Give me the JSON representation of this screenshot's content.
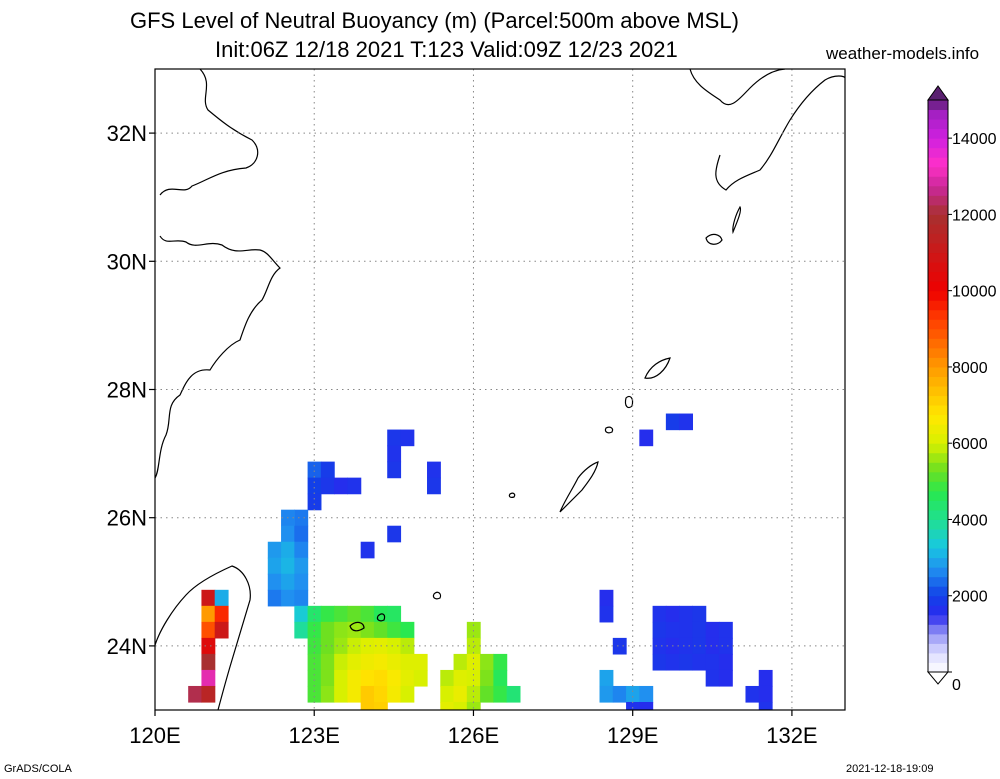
{
  "title_line1": "GFS Level of Neutral Buoyancy (m) (Parcel:500m above MSL)",
  "title_line2": "Init:06Z 12/18 2021 T:123 Valid:09Z 12/23 2021",
  "site": "weather-models.info",
  "footer_left": "GrADS/COLA",
  "footer_right": "2021-12-18-19:09",
  "chart_data": {
    "type": "heatmap",
    "title": "GFS Level of Neutral Buoyancy (m) (Parcel:500m above MSL)",
    "subtitle": "Init:06Z 12/18 2021 T:123 Valid:09Z 12/23 2021",
    "xlabel": "",
    "ylabel": "",
    "xlim": [
      120,
      133
    ],
    "ylim": [
      23,
      33
    ],
    "x_ticks": [
      {
        "value": 120,
        "label": "120E"
      },
      {
        "value": 123,
        "label": "123E"
      },
      {
        "value": 126,
        "label": "126E"
      },
      {
        "value": 129,
        "label": "129E"
      },
      {
        "value": 132,
        "label": "132E"
      }
    ],
    "y_ticks": [
      {
        "value": 24,
        "label": "24N"
      },
      {
        "value": 26,
        "label": "26N"
      },
      {
        "value": 28,
        "label": "28N"
      },
      {
        "value": 30,
        "label": "30N"
      },
      {
        "value": 32,
        "label": "32N"
      }
    ],
    "grid": true,
    "colorbar": {
      "range": [
        0,
        15000
      ],
      "labels": [
        "0",
        "2000",
        "4000",
        "6000",
        "8000",
        "10000",
        "12000",
        "14000"
      ],
      "label_values": [
        0,
        2000,
        4000,
        6000,
        8000,
        10000,
        12000,
        14000
      ],
      "stops": [
        {
          "value": 0,
          "color": "#ffffff"
        },
        {
          "value": 500,
          "color": "#dcdcff"
        },
        {
          "value": 1000,
          "color": "#9898f5"
        },
        {
          "value": 1500,
          "color": "#2a2aee"
        },
        {
          "value": 2000,
          "color": "#1240e8"
        },
        {
          "value": 2700,
          "color": "#2090f0"
        },
        {
          "value": 3300,
          "color": "#18c8e0"
        },
        {
          "value": 4000,
          "color": "#20e090"
        },
        {
          "value": 4700,
          "color": "#28e850"
        },
        {
          "value": 5300,
          "color": "#6ee020"
        },
        {
          "value": 6000,
          "color": "#d8f000"
        },
        {
          "value": 6700,
          "color": "#ffe800"
        },
        {
          "value": 7300,
          "color": "#ffc400"
        },
        {
          "value": 8000,
          "color": "#ff9a00"
        },
        {
          "value": 8700,
          "color": "#ff6600"
        },
        {
          "value": 9300,
          "color": "#ff3a00"
        },
        {
          "value": 10000,
          "color": "#ee0000"
        },
        {
          "value": 10700,
          "color": "#d81010"
        },
        {
          "value": 11300,
          "color": "#c02020"
        },
        {
          "value": 12000,
          "color": "#a83030"
        },
        {
          "value": 12700,
          "color": "#c82896"
        },
        {
          "value": 13300,
          "color": "#ff30c8"
        },
        {
          "value": 14000,
          "color": "#d020e0"
        },
        {
          "value": 14700,
          "color": "#a020c0"
        },
        {
          "value": 15000,
          "color": "#5a2070"
        }
      ]
    },
    "grid_step_deg": 0.25,
    "cells": [
      [
        123.0,
        26.75,
        2300
      ],
      [
        123.25,
        26.75,
        1900
      ],
      [
        123.0,
        26.5,
        2000
      ],
      [
        123.25,
        26.5,
        1800
      ],
      [
        123.5,
        26.5,
        1600
      ],
      [
        123.75,
        26.5,
        1700
      ],
      [
        123.0,
        26.25,
        1900
      ],
      [
        122.75,
        26.0,
        2500
      ],
      [
        122.5,
        26.0,
        2600
      ],
      [
        122.5,
        25.75,
        2700
      ],
      [
        122.75,
        25.75,
        2400
      ],
      [
        122.25,
        25.5,
        2800
      ],
      [
        122.5,
        25.5,
        3000
      ],
      [
        122.75,
        25.5,
        2600
      ],
      [
        122.25,
        25.25,
        2900
      ],
      [
        122.5,
        25.25,
        3100
      ],
      [
        122.75,
        25.25,
        2800
      ],
      [
        122.25,
        25.0,
        2700
      ],
      [
        122.5,
        25.0,
        2900
      ],
      [
        122.75,
        25.0,
        2700
      ],
      [
        122.25,
        24.75,
        2500
      ],
      [
        122.5,
        24.75,
        2700
      ],
      [
        122.75,
        24.75,
        2600
      ],
      [
        124.5,
        27.25,
        1800
      ],
      [
        124.75,
        27.25,
        1700
      ],
      [
        124.5,
        27.0,
        1700
      ],
      [
        124.5,
        26.75,
        1800
      ],
      [
        125.25,
        26.75,
        1700
      ],
      [
        125.25,
        26.5,
        1800
      ],
      [
        124.0,
        25.5,
        1700
      ],
      [
        124.5,
        25.75,
        1800
      ],
      [
        129.75,
        27.5,
        1900
      ],
      [
        130.0,
        27.5,
        1700
      ],
      [
        129.25,
        27.25,
        1600
      ],
      [
        121.0,
        24.75,
        11000
      ],
      [
        121.25,
        24.75,
        3000
      ],
      [
        121.0,
        24.5,
        8000
      ],
      [
        121.25,
        24.5,
        9500
      ],
      [
        121.0,
        24.25,
        9000
      ],
      [
        121.25,
        24.25,
        11000
      ],
      [
        121.0,
        24.0,
        10500
      ],
      [
        121.0,
        23.75,
        12000
      ],
      [
        121.0,
        23.5,
        13000
      ],
      [
        120.75,
        23.25,
        12200
      ],
      [
        121.0,
        23.25,
        11500
      ],
      [
        122.75,
        24.5,
        3400
      ],
      [
        123.0,
        24.5,
        4400
      ],
      [
        123.25,
        24.5,
        4800
      ],
      [
        123.5,
        24.5,
        5000
      ],
      [
        123.75,
        24.5,
        5200
      ],
      [
        124.0,
        24.5,
        5000
      ],
      [
        124.25,
        24.5,
        4600
      ],
      [
        124.5,
        24.5,
        4500
      ],
      [
        122.75,
        24.25,
        3900
      ],
      [
        123.0,
        24.25,
        4800
      ],
      [
        123.25,
        24.25,
        5300
      ],
      [
        123.5,
        24.25,
        5500
      ],
      [
        123.75,
        24.25,
        5600
      ],
      [
        124.0,
        24.25,
        5400
      ],
      [
        124.25,
        24.25,
        5200
      ],
      [
        124.5,
        24.25,
        4900
      ],
      [
        124.75,
        24.25,
        4700
      ],
      [
        123.0,
        24.0,
        4900
      ],
      [
        123.25,
        24.0,
        5300
      ],
      [
        123.5,
        24.0,
        5600
      ],
      [
        123.75,
        24.0,
        5900
      ],
      [
        124.0,
        24.0,
        6100
      ],
      [
        124.25,
        24.0,
        6200
      ],
      [
        124.5,
        24.0,
        6000
      ],
      [
        124.75,
        24.0,
        5800
      ],
      [
        123.0,
        23.75,
        5000
      ],
      [
        123.25,
        23.75,
        5400
      ],
      [
        123.5,
        23.75,
        5900
      ],
      [
        123.75,
        23.75,
        6200
      ],
      [
        124.0,
        23.75,
        6400
      ],
      [
        124.25,
        23.75,
        6500
      ],
      [
        124.5,
        23.75,
        6300
      ],
      [
        124.75,
        23.75,
        6100
      ],
      [
        125.0,
        23.75,
        6100
      ],
      [
        123.0,
        23.5,
        5000
      ],
      [
        123.25,
        23.5,
        5400
      ],
      [
        123.5,
        23.5,
        6000
      ],
      [
        123.75,
        23.5,
        6500
      ],
      [
        124.0,
        23.5,
        6800
      ],
      [
        124.25,
        23.5,
        6900
      ],
      [
        124.5,
        23.5,
        6600
      ],
      [
        124.75,
        23.5,
        6200
      ],
      [
        125.0,
        23.5,
        6000
      ],
      [
        123.0,
        23.25,
        5000
      ],
      [
        123.25,
        23.25,
        5500
      ],
      [
        123.5,
        23.25,
        6000
      ],
      [
        123.75,
        23.25,
        6500
      ],
      [
        124.0,
        23.25,
        7200
      ],
      [
        124.25,
        23.25,
        7000
      ],
      [
        124.5,
        23.25,
        6500
      ],
      [
        124.75,
        23.25,
        6000
      ],
      [
        124.0,
        23.0,
        7200
      ],
      [
        124.25,
        23.0,
        7100
      ],
      [
        126.0,
        24.25,
        5600
      ],
      [
        126.0,
        24.0,
        5800
      ],
      [
        125.75,
        23.75,
        5800
      ],
      [
        126.0,
        23.75,
        6100
      ],
      [
        126.25,
        23.75,
        5500
      ],
      [
        126.5,
        23.75,
        4800
      ],
      [
        125.5,
        23.5,
        5800
      ],
      [
        125.75,
        23.5,
        6100
      ],
      [
        126.0,
        23.5,
        6000
      ],
      [
        126.25,
        23.5,
        5400
      ],
      [
        126.5,
        23.5,
        4600
      ],
      [
        125.5,
        23.25,
        6000
      ],
      [
        125.75,
        23.25,
        6300
      ],
      [
        126.0,
        23.25,
        5800
      ],
      [
        126.25,
        23.25,
        5200
      ],
      [
        126.5,
        23.25,
        4800
      ],
      [
        126.75,
        23.25,
        4300
      ],
      [
        125.5,
        23.0,
        6200
      ],
      [
        125.75,
        23.0,
        6000
      ],
      [
        126.0,
        23.0,
        5600
      ],
      [
        128.5,
        24.75,
        1600
      ],
      [
        128.5,
        24.5,
        1700
      ],
      [
        128.75,
        24.0,
        1800
      ],
      [
        129.5,
        24.5,
        1700
      ],
      [
        129.75,
        24.5,
        1600
      ],
      [
        130.0,
        24.5,
        1700
      ],
      [
        130.25,
        24.5,
        1800
      ],
      [
        129.5,
        24.25,
        1800
      ],
      [
        129.75,
        24.25,
        1700
      ],
      [
        130.0,
        24.25,
        1700
      ],
      [
        130.25,
        24.25,
        1800
      ],
      [
        130.5,
        24.25,
        1600
      ],
      [
        130.75,
        24.25,
        1700
      ],
      [
        129.5,
        24.0,
        1700
      ],
      [
        129.75,
        24.0,
        1600
      ],
      [
        130.0,
        24.0,
        1700
      ],
      [
        130.25,
        24.0,
        1800
      ],
      [
        130.5,
        24.0,
        1600
      ],
      [
        130.75,
        24.0,
        1700
      ],
      [
        129.5,
        23.75,
        1800
      ],
      [
        129.75,
        23.75,
        1700
      ],
      [
        130.0,
        23.75,
        1800
      ],
      [
        130.25,
        23.75,
        1700
      ],
      [
        130.5,
        23.75,
        1700
      ],
      [
        130.75,
        23.75,
        1600
      ],
      [
        130.5,
        23.5,
        1700
      ],
      [
        130.75,
        23.5,
        1600
      ],
      [
        128.5,
        23.5,
        2900
      ],
      [
        128.5,
        23.25,
        2800
      ],
      [
        128.75,
        23.25,
        2600
      ],
      [
        129.0,
        23.25,
        2900
      ],
      [
        129.25,
        23.25,
        2700
      ],
      [
        129.0,
        23.0,
        1700
      ],
      [
        129.25,
        23.0,
        1600
      ],
      [
        131.5,
        23.5,
        1600
      ],
      [
        131.25,
        23.25,
        1700
      ],
      [
        131.5,
        23.25,
        1600
      ],
      [
        131.5,
        23.0,
        1700
      ]
    ]
  }
}
